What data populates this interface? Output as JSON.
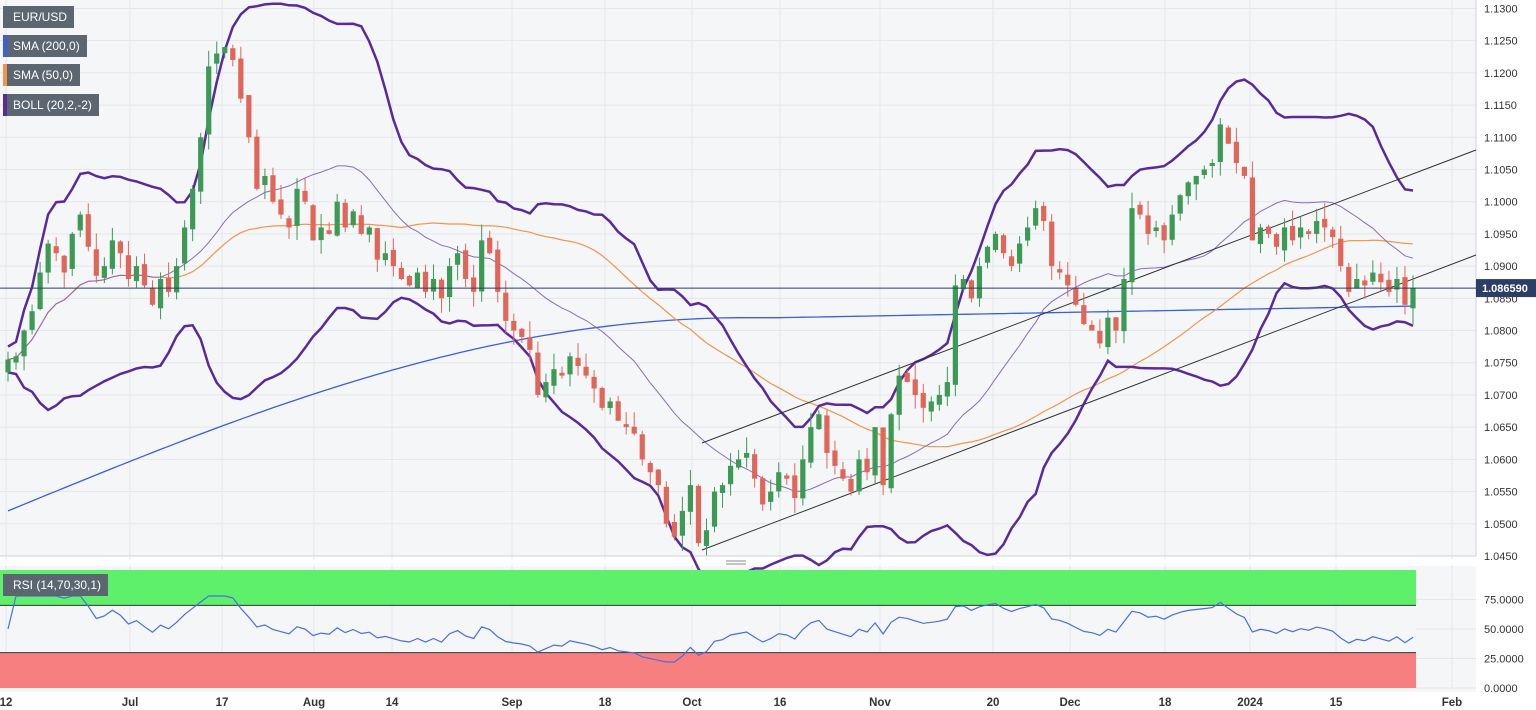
{
  "colors": {
    "up": "#3c9a55",
    "down": "#e0665a",
    "sma200": "#3b5ee0",
    "sma50": "#f0954b",
    "boll": "#5a2a9b",
    "bollMid": "#8a6bc0",
    "rsi": "#4a6ee0",
    "rsiOverbought": "#5ef06a",
    "rsiOversold": "#f77f7f",
    "priceLine": "#2c3e66"
  },
  "legend": {
    "symbol": "EUR/USD",
    "sma200": "SMA (200,0)",
    "sma50": "SMA (50,0)",
    "boll": "BOLL (20,2,-2)",
    "rsi": "RSI (14,70,30,1)"
  },
  "current_price_label": "1.086590",
  "chart_data": [
    {
      "type": "candlestick",
      "title": "EUR/USD",
      "ylim": [
        1.045,
        1.131
      ],
      "y_ticks": [
        "1.1300",
        "1.1250",
        "1.1200",
        "1.1150",
        "1.1100",
        "1.1050",
        "1.1000",
        "1.0950",
        "1.0900",
        "1.0850",
        "1.0800",
        "1.0750",
        "1.0700",
        "1.0650",
        "1.0600",
        "1.0550",
        "1.0500",
        "1.0450"
      ],
      "x_ticks": [
        "12",
        "Jul",
        "17",
        "Aug",
        "14",
        "Sep",
        "18",
        "Oct",
        "16",
        "Nov",
        "20",
        "Dec",
        "18",
        "2024",
        "15",
        "Feb"
      ],
      "x_tick_months": [
        2,
        3,
        4,
        5,
        6,
        7,
        8,
        9,
        10,
        11,
        12,
        13,
        14,
        15,
        16,
        17
      ],
      "current_price": 1.08659,
      "series_close": [
        1.0755,
        1.076,
        1.08,
        1.083,
        1.089,
        1.0935,
        1.092,
        1.089,
        1.095,
        1.098,
        1.093,
        1.0885,
        1.09,
        1.094,
        1.092,
        1.088,
        1.09,
        1.087,
        1.084,
        1.088,
        1.086,
        1.09,
        1.096,
        1.102,
        1.11,
        1.121,
        1.123,
        1.124,
        1.122,
        1.116,
        1.11,
        1.102,
        1.104,
        1.1,
        1.098,
        1.096,
        1.102,
        1.1,
        1.094,
        1.096,
        1.095,
        1.1,
        1.096,
        1.0985,
        1.095,
        1.096,
        1.091,
        1.092,
        1.09,
        1.088,
        1.087,
        1.089,
        1.086,
        1.088,
        1.085,
        1.09,
        1.092,
        1.088,
        1.086,
        1.094,
        1.092,
        1.086,
        1.0815,
        1.08,
        1.079,
        1.077,
        1.07,
        1.072,
        1.074,
        1.073,
        1.076,
        1.0745,
        1.073,
        1.071,
        1.068,
        1.069,
        1.066,
        1.065,
        1.064,
        1.06,
        1.058,
        1.056,
        1.05,
        1.048,
        1.052,
        1.056,
        1.047,
        1.049,
        1.055,
        1.056,
        1.059,
        1.06,
        1.061,
        1.057,
        1.053,
        1.055,
        1.058,
        1.057,
        1.054,
        1.06,
        1.065,
        1.067,
        1.061,
        1.059,
        1.057,
        1.055,
        1.06,
        1.058,
        1.065,
        1.056,
        1.067,
        1.073,
        1.072,
        1.07,
        1.068,
        1.069,
        1.07,
        1.072,
        1.087,
        1.088,
        1.085,
        1.09,
        1.093,
        1.095,
        1.092,
        1.09,
        1.0935,
        1.096,
        1.099,
        1.097,
        1.09,
        1.089,
        1.087,
        1.084,
        1.081,
        1.08,
        1.078,
        1.082,
        1.08,
        1.088,
        1.099,
        1.098,
        1.095,
        1.096,
        1.094,
        1.098,
        1.101,
        1.103,
        1.104,
        1.105,
        1.106,
        1.112,
        1.109,
        1.106,
        1.104,
        1.094,
        1.096,
        1.095,
        1.093,
        1.096,
        1.094,
        1.096,
        1.095,
        1.097,
        1.096,
        1.0945,
        1.09,
        1.086,
        1.088,
        1.087,
        1.089,
        1.0875,
        1.086,
        1.088,
        1.084,
        1.0866
      ],
      "rsi_ylim": [
        0,
        100
      ],
      "rsi_ticks": [
        "75.0000",
        "50.0000",
        "25.0000",
        "0.0000"
      ],
      "rsi_levels": [
        70,
        30
      ]
    }
  ]
}
